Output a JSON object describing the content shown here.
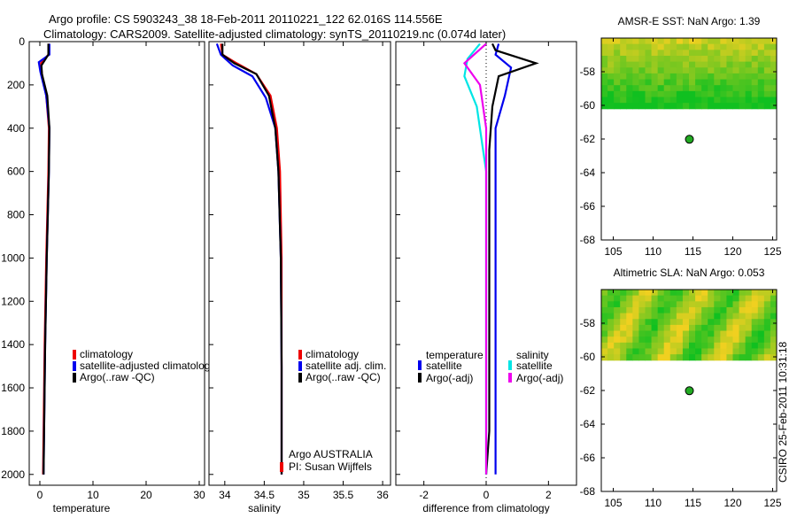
{
  "header": {
    "line1": "Argo profile: CS 5903243_38 18-Feb-2011 20110221_122 62.016S 114.556E",
    "line2": "Climatology: CARS2009. Satellite-adjusted climatology: synTS_20110219.nc (0.074d later)"
  },
  "footer_stamp": "CSIRO 25-Feb-2011 10:31:18",
  "colors": {
    "climatology": "#ee0000",
    "satellite": "#0000ee",
    "argo": "#000000",
    "sal_satellite": "#00e5e5",
    "sal_argo": "#ee00ee",
    "map_high": "#f0d020",
    "map_low": "#10c020",
    "dot": "#22aa22"
  },
  "chart_data": [
    {
      "type": "line",
      "name": "temperature-profile",
      "xlabel": "temperature",
      "ylabel": "",
      "xlim": [
        -2,
        31
      ],
      "ylim": [
        2050,
        0
      ],
      "xticks": [
        0,
        10,
        20,
        30
      ],
      "yticks": [
        0,
        200,
        400,
        600,
        800,
        1000,
        1200,
        1400,
        1600,
        1800,
        2000
      ],
      "legend": [
        "climatology",
        "satellite-adjusted climatology",
        "Argo(..raw -QC)"
      ],
      "series": [
        {
          "name": "climatology",
          "color": "#ee0000",
          "x": [
            1.6,
            1.6,
            0.2,
            0.4,
            1.2,
            1.7,
            1.6,
            1.2,
            0.9,
            0.7,
            0.6
          ],
          "y": [
            10,
            60,
            100,
            150,
            250,
            400,
            600,
            1000,
            1400,
            1800,
            2000
          ]
        },
        {
          "name": "satellite",
          "color": "#0000ee",
          "x": [
            1.8,
            1.8,
            -0.2,
            0.1,
            1.2,
            1.8,
            1.7,
            1.3,
            1.0,
            0.8,
            0.7
          ],
          "y": [
            10,
            60,
            95,
            140,
            250,
            400,
            600,
            1000,
            1400,
            1800,
            2000
          ]
        },
        {
          "name": "argo",
          "color": "#000000",
          "x": [
            1.6,
            1.6,
            0.3,
            0.4,
            1.4,
            1.8,
            1.7,
            1.3,
            1.0,
            0.8,
            0.7
          ],
          "y": [
            10,
            60,
            110,
            150,
            250,
            400,
            600,
            1000,
            1400,
            1800,
            2000
          ]
        }
      ]
    },
    {
      "type": "line",
      "name": "salinity-profile",
      "xlabel": "salinity",
      "xlim": [
        33.8,
        36.1
      ],
      "ylim": [
        2050,
        0
      ],
      "xticks": [
        34,
        34.5,
        35,
        35.5,
        36
      ],
      "legend": [
        "climatology",
        "satellite adj. clim.",
        "Argo(..raw -QC)"
      ],
      "annotation": [
        "Argo AUSTRALIA",
        "PI: Susan Wijffels"
      ],
      "series": [
        {
          "name": "climatology",
          "color": "#ee0000",
          "x": [
            33.95,
            33.97,
            34.15,
            34.4,
            34.58,
            34.66,
            34.7,
            34.72,
            34.72,
            34.72
          ],
          "y": [
            10,
            60,
            100,
            150,
            250,
            400,
            600,
            1000,
            1500,
            2000
          ]
        },
        {
          "name": "satellite",
          "color": "#0000ee",
          "x": [
            33.9,
            33.95,
            34.1,
            34.35,
            34.52,
            34.64,
            34.68,
            34.71,
            34.72,
            34.72
          ],
          "y": [
            10,
            60,
            110,
            160,
            260,
            400,
            600,
            1000,
            1500,
            2000
          ]
        },
        {
          "name": "argo",
          "color": "#000000",
          "x": [
            33.97,
            33.97,
            34.12,
            34.4,
            34.56,
            34.64,
            34.68,
            34.71,
            34.72,
            34.72
          ],
          "y": [
            10,
            60,
            100,
            150,
            250,
            400,
            600,
            1000,
            1500,
            2000
          ]
        }
      ]
    },
    {
      "type": "line",
      "name": "difference-profile",
      "xlabel": "difference from climatology",
      "xlim": [
        -2.9,
        2.9
      ],
      "ylim": [
        2050,
        0
      ],
      "xticks": [
        -2,
        0,
        2
      ],
      "legend_temperature_title": "temperature",
      "legend_salinity_title": "salinity",
      "legend_temperature": [
        "satellite",
        "Argo(-adj)"
      ],
      "legend_salinity": [
        "satellite",
        "Argo(-adj)"
      ],
      "series": [
        {
          "name": "temp satellite",
          "color": "#0000ee",
          "x": [
            0.4,
            0.3,
            0.8,
            0.6,
            0.3,
            0.3,
            0.3,
            0.3,
            0.3,
            0.3,
            0.3
          ],
          "y": [
            10,
            60,
            120,
            250,
            400,
            600,
            1000,
            1200,
            1500,
            1800,
            2000
          ]
        },
        {
          "name": "temp argo",
          "color": "#000000",
          "x": [
            0.2,
            0.3,
            1.6,
            0.4,
            0.2,
            0.1,
            0.1,
            0.1,
            0.1,
            0.1,
            0.0
          ],
          "y": [
            10,
            40,
            100,
            160,
            300,
            500,
            900,
            1200,
            1500,
            1800,
            2000
          ]
        },
        {
          "name": "sal satellite",
          "color": "#00e5e5",
          "x": [
            -0.2,
            -0.6,
            -0.7,
            -0.3,
            0.0,
            0.0,
            0.0,
            0.0,
            0.0
          ],
          "y": [
            10,
            80,
            160,
            300,
            600,
            1000,
            1400,
            1800,
            2000
          ]
        },
        {
          "name": "sal argo",
          "color": "#ee00ee",
          "x": [
            0.0,
            -0.7,
            -0.2,
            0.0,
            0.0,
            0.0,
            0.0,
            0.0
          ],
          "y": [
            10,
            100,
            200,
            400,
            800,
            1200,
            1600,
            2000
          ]
        }
      ]
    },
    {
      "type": "heatmap",
      "name": "amsr-sst-map",
      "title": "AMSR-E SST: NaN Argo: 1.39",
      "xlim": [
        103.5,
        125.5
      ],
      "ylim": [
        -68,
        -56
      ],
      "xticks": [
        105,
        110,
        115,
        120,
        125
      ],
      "yticks": [
        -58,
        -60,
        -62,
        -64,
        -66,
        -68
      ],
      "data_extent_lat": [
        -60.2,
        -56
      ],
      "point": {
        "lon": 114.556,
        "lat": -62.016
      }
    },
    {
      "type": "heatmap",
      "name": "altimetric-sla-map",
      "title": "Altimetric SLA: NaN Argo: 0.053",
      "xlim": [
        103.5,
        125.5
      ],
      "ylim": [
        -68,
        -56
      ],
      "xticks": [
        105,
        110,
        115,
        120,
        125
      ],
      "yticks": [
        -58,
        -60,
        -62,
        -64,
        -66,
        -68
      ],
      "data_extent_lat": [
        -60.2,
        -56
      ],
      "point": {
        "lon": 114.556,
        "lat": -62.016
      }
    }
  ]
}
